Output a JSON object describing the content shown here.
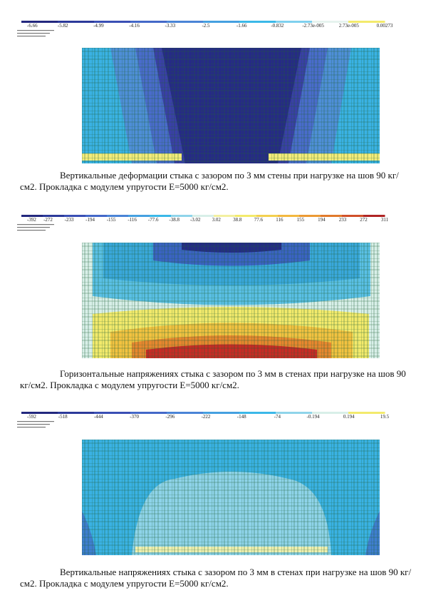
{
  "figures": [
    {
      "scale_labels": [
        "-6.66",
        "-5.82",
        "-4.99",
        "-4.16",
        "-3.33",
        "-2.5",
        "-1.66",
        "-0.832",
        "-2.73e-005",
        "2.73e-005",
        "0.00273"
      ],
      "caption": "Вертикальные деформации стыка с зазором по 3 мм стены при нагрузке на шов 90 кг/см2. Прокладка с модулем упругости Е=5000 кг/см2."
    },
    {
      "scale_labels": [
        "-392",
        "-272",
        "-233",
        "-194",
        "-155",
        "-116",
        "-77.6",
        "-38.8",
        "-3.02",
        "3.02",
        "38.8",
        "77.6",
        "116",
        "155",
        "194",
        "233",
        "272",
        "311"
      ],
      "caption": "Горизонтальные напряжениях стыка с зазором по 3 мм в стенах при нагрузке на шов 90 кг/см2. Прокладка с модулем упругости Е=5000 кг/см2."
    },
    {
      "scale_labels": [
        "-592",
        "-518",
        "-444",
        "-370",
        "-296",
        "-222",
        "-148",
        "-74",
        "-0.194",
        "0.194",
        "19.5"
      ],
      "caption": "Вертикальные напряжениях стыка с зазором по 3 мм в стенах при нагрузке на шов 90 кг/см2. Прокладка с модулем упругости Е=5000 кг/см2."
    }
  ]
}
